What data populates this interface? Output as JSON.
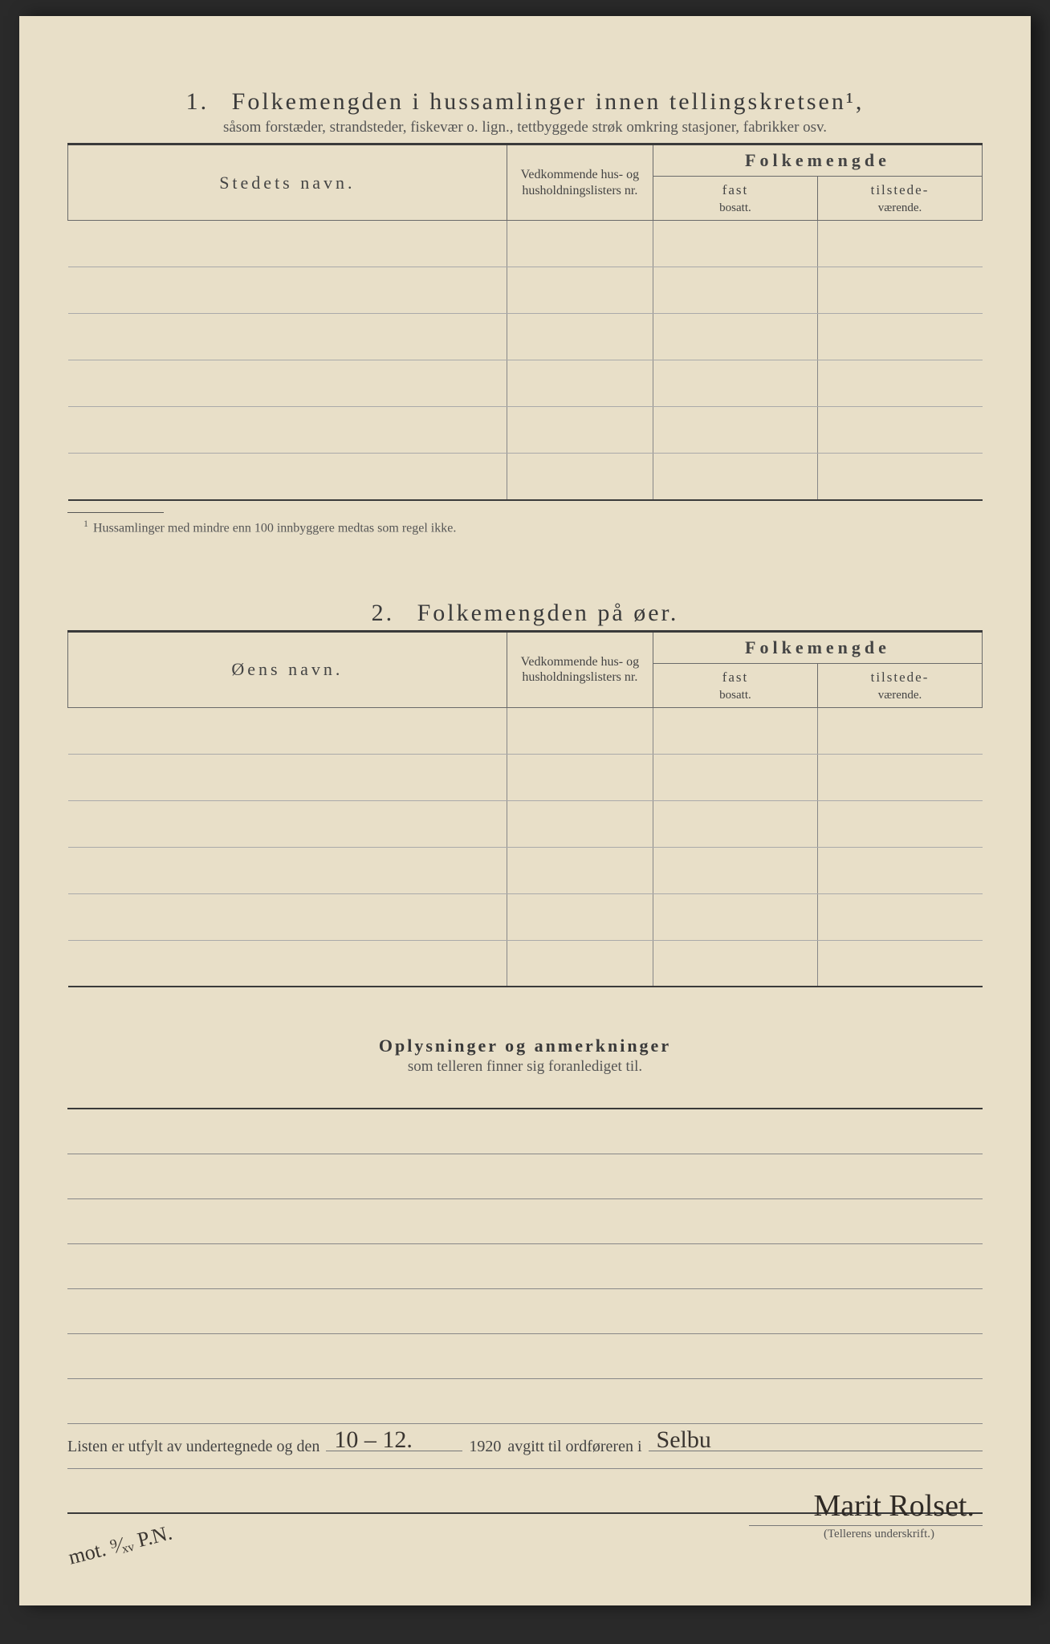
{
  "colors": {
    "paper": "#e8dfc8",
    "ink": "#3a3a3a",
    "rule": "#6a6a6a",
    "hand": "#3a3530"
  },
  "section1": {
    "num": "1.",
    "title": "Folkemengden i hussamlinger innen tellingskretsen¹,",
    "subtitle": "såsom forstæder, strandsteder, fiskevær o. lign., tettbyggede strøk omkring stasjoner, fabrikker osv.",
    "headers": {
      "name": "Stedets navn.",
      "ref": "Vedkommende hus- og husholdningslisters nr.",
      "group": "Folkemengde",
      "fast_label": "fast",
      "fast_sub": "bosatt.",
      "tilstede_label": "tilstede-",
      "tilstede_sub": "værende."
    },
    "row_count": 6,
    "footnote": "Hussamlinger med mindre enn 100 innbyggere medtas som regel ikke."
  },
  "section2": {
    "num": "2.",
    "title": "Folkemengden på øer.",
    "headers": {
      "name": "Øens navn.",
      "ref": "Vedkommende hus- og husholdningslisters nr.",
      "group": "Folkemengde",
      "fast_label": "fast",
      "fast_sub": "bosatt.",
      "tilstede_label": "tilstede-",
      "tilstede_sub": "værende."
    },
    "row_count": 6
  },
  "remarks": {
    "title": "Oplysninger og anmerkninger",
    "subtitle": "som telleren finner sig foranlediget til.",
    "line_count": 9
  },
  "signature": {
    "text_a": "Listen er utfylt av undertegnede og den",
    "date": "10 – 12.",
    "year": "1920",
    "text_b": "avgitt til ordføreren i",
    "place": "Selbu",
    "name": "Marit Rolset.",
    "caption": "(Tellerens underskrift.)",
    "margin_note": "mot. ⁹⁄ₓᵥ P.N."
  }
}
